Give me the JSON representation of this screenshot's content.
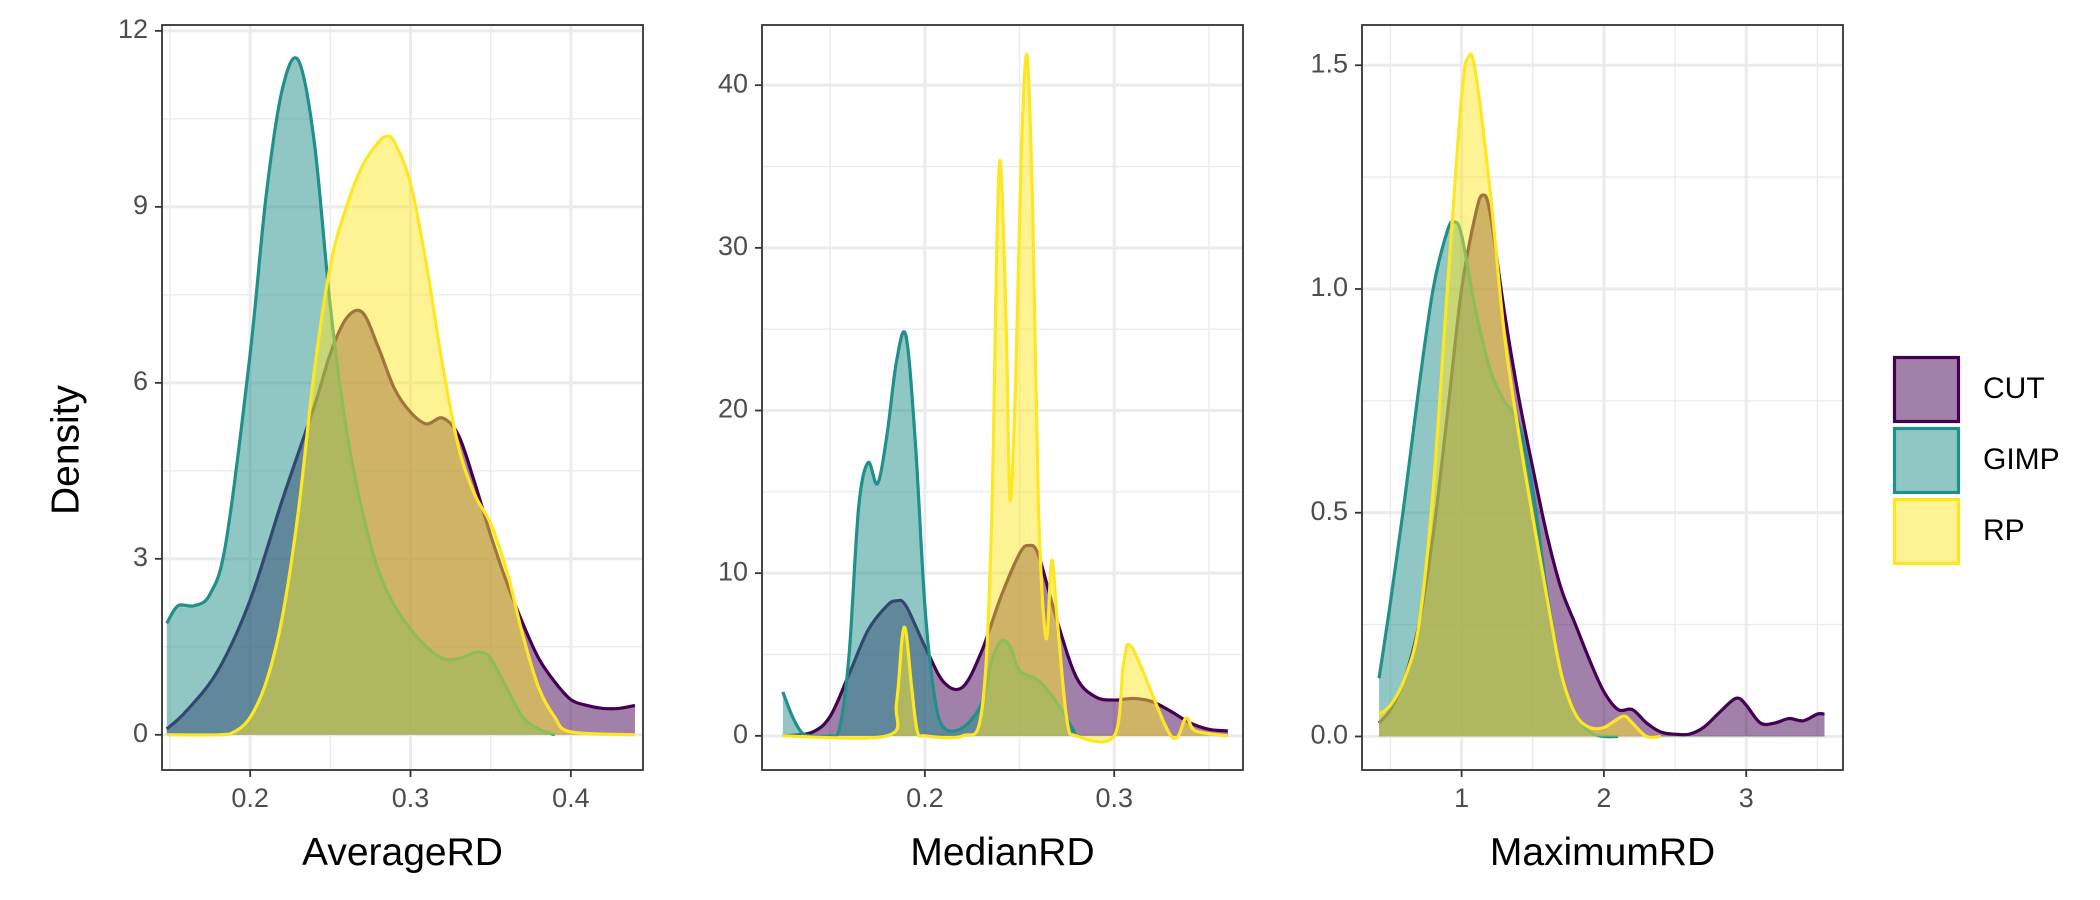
{
  "ylabel": "Density",
  "colors": {
    "CUT": "#440154",
    "GIMP": "#21908C",
    "RP": "#FDE725"
  },
  "legend": {
    "position": "right",
    "entries": [
      "CUT",
      "GIMP",
      "RP"
    ]
  },
  "chart_data": [
    {
      "type": "area",
      "xlabel": "AverageRD",
      "ylabel": "Density",
      "xlim": [
        0.145,
        0.445
      ],
      "ylim": [
        -0.6,
        12.1
      ],
      "xticks": [
        0.2,
        0.3,
        0.4
      ],
      "xtick_labels": [
        "0.2",
        "0.3",
        "0.4"
      ],
      "yticks": [
        0,
        3,
        6,
        9,
        12
      ],
      "ytick_labels": [
        "0",
        "3",
        "6",
        "9",
        "12"
      ],
      "grid": true,
      "series": [
        {
          "name": "CUT",
          "x": [
            0.148,
            0.16,
            0.18,
            0.2,
            0.22,
            0.24,
            0.25,
            0.26,
            0.27,
            0.28,
            0.29,
            0.3,
            0.31,
            0.32,
            0.33,
            0.34,
            0.35,
            0.36,
            0.37,
            0.38,
            0.39,
            0.4,
            0.41,
            0.42,
            0.43,
            0.44
          ],
          "y": [
            0.1,
            0.4,
            1.1,
            2.3,
            4.0,
            5.6,
            6.5,
            7.1,
            7.2,
            6.6,
            5.9,
            5.5,
            5.3,
            5.4,
            5.1,
            4.3,
            3.4,
            2.6,
            1.9,
            1.3,
            0.9,
            0.6,
            0.5,
            0.45,
            0.45,
            0.5
          ]
        },
        {
          "name": "GIMP",
          "x": [
            0.148,
            0.155,
            0.165,
            0.175,
            0.185,
            0.2,
            0.21,
            0.22,
            0.23,
            0.24,
            0.25,
            0.26,
            0.27,
            0.28,
            0.29,
            0.3,
            0.31,
            0.32,
            0.33,
            0.34,
            0.345,
            0.35,
            0.36,
            0.37,
            0.38,
            0.39
          ],
          "y": [
            1.9,
            2.2,
            2.2,
            2.4,
            3.3,
            6.5,
            9.2,
            11.0,
            11.5,
            10.1,
            7.3,
            5.2,
            3.8,
            2.8,
            2.2,
            1.8,
            1.5,
            1.3,
            1.3,
            1.4,
            1.4,
            1.3,
            0.8,
            0.3,
            0.1,
            0.0
          ]
        },
        {
          "name": "RP",
          "x": [
            0.148,
            0.18,
            0.19,
            0.2,
            0.21,
            0.22,
            0.23,
            0.24,
            0.25,
            0.26,
            0.27,
            0.28,
            0.285,
            0.29,
            0.3,
            0.31,
            0.32,
            0.33,
            0.34,
            0.35,
            0.36,
            0.37,
            0.38,
            0.39,
            0.4,
            0.44
          ],
          "y": [
            0.0,
            0.0,
            0.05,
            0.3,
            0.9,
            2.0,
            3.8,
            6.2,
            8.0,
            9.0,
            9.7,
            10.1,
            10.2,
            10.1,
            9.4,
            8.0,
            6.3,
            4.9,
            4.1,
            3.6,
            2.8,
            1.7,
            0.8,
            0.3,
            0.05,
            0.0
          ]
        }
      ]
    },
    {
      "type": "area",
      "xlabel": "MedianRD",
      "ylabel": "Density",
      "xlim": [
        0.114,
        0.368
      ],
      "ylim": [
        -2.1,
        43.7
      ],
      "xticks": [
        0.2,
        0.3
      ],
      "xtick_labels": [
        "0.2",
        "0.3"
      ],
      "yticks": [
        0,
        10,
        20,
        30,
        40
      ],
      "ytick_labels": [
        "0",
        "10",
        "20",
        "30",
        "40"
      ],
      "grid": true,
      "series": [
        {
          "name": "CUT",
          "x": [
            0.125,
            0.14,
            0.15,
            0.16,
            0.17,
            0.18,
            0.185,
            0.19,
            0.2,
            0.21,
            0.22,
            0.23,
            0.24,
            0.25,
            0.255,
            0.26,
            0.27,
            0.28,
            0.29,
            0.3,
            0.31,
            0.32,
            0.33,
            0.34,
            0.35,
            0.36
          ],
          "y": [
            0.0,
            0.2,
            1.2,
            3.8,
            6.5,
            8.0,
            8.3,
            8.0,
            5.5,
            3.3,
            3.0,
            5.2,
            8.5,
            11.2,
            11.7,
            11.1,
            7.0,
            3.6,
            2.4,
            2.2,
            2.3,
            2.1,
            1.5,
            0.8,
            0.4,
            0.3
          ]
        },
        {
          "name": "GIMP",
          "x": [
            0.125,
            0.13,
            0.135,
            0.14,
            0.15,
            0.155,
            0.16,
            0.165,
            0.17,
            0.175,
            0.18,
            0.185,
            0.19,
            0.195,
            0.2,
            0.205,
            0.21,
            0.22,
            0.23,
            0.235,
            0.24,
            0.245,
            0.25,
            0.26,
            0.27,
            0.28
          ],
          "y": [
            2.7,
            1.2,
            0.2,
            0.0,
            0.0,
            0.5,
            5.0,
            14.0,
            16.8,
            15.5,
            18.5,
            23.0,
            24.6,
            18.0,
            8.0,
            2.5,
            0.5,
            0.5,
            2.0,
            4.5,
            5.8,
            5.5,
            4.0,
            3.4,
            2.0,
            0.0
          ]
        },
        {
          "name": "RP",
          "x": [
            0.125,
            0.18,
            0.185,
            0.188,
            0.19,
            0.193,
            0.196,
            0.2,
            0.22,
            0.23,
            0.235,
            0.238,
            0.24,
            0.243,
            0.245,
            0.248,
            0.251,
            0.254,
            0.257,
            0.26,
            0.264,
            0.267,
            0.27,
            0.275,
            0.28,
            0.3,
            0.305,
            0.31,
            0.33,
            0.338,
            0.343,
            0.36
          ],
          "y": [
            0.0,
            0.0,
            2.0,
            6.0,
            6.4,
            3.0,
            0.3,
            0.0,
            0.0,
            1.5,
            12.0,
            30.0,
            35.2,
            25.0,
            14.5,
            22.0,
            36.0,
            41.8,
            32.0,
            14.0,
            6.0,
            10.8,
            7.0,
            1.0,
            0.0,
            0.0,
            4.5,
            5.3,
            0.0,
            1.1,
            0.3,
            0.0
          ]
        }
      ]
    },
    {
      "type": "area",
      "xlabel": "MaximumRD",
      "ylabel": "Density",
      "xlim": [
        0.3,
        3.68
      ],
      "ylim": [
        -0.075,
        1.59
      ],
      "xticks": [
        1,
        2,
        3
      ],
      "xtick_labels": [
        "1",
        "2",
        "3"
      ],
      "yticks": [
        0.0,
        0.5,
        1.0,
        1.5
      ],
      "ytick_labels": [
        "0.0",
        "0.5",
        "1.0",
        "1.5"
      ],
      "grid": true,
      "series": [
        {
          "name": "CUT",
          "x": [
            0.42,
            0.5,
            0.6,
            0.7,
            0.8,
            0.9,
            1.0,
            1.1,
            1.15,
            1.2,
            1.3,
            1.4,
            1.5,
            1.6,
            1.7,
            1.8,
            1.9,
            2.0,
            2.1,
            2.2,
            2.3,
            2.4,
            2.5,
            2.6,
            2.7,
            2.8,
            2.9,
            2.95,
            3.0,
            3.1,
            3.2,
            3.3,
            3.4,
            3.5,
            3.55
          ],
          "y": [
            0.03,
            0.06,
            0.13,
            0.25,
            0.45,
            0.72,
            1.0,
            1.17,
            1.21,
            1.17,
            0.95,
            0.76,
            0.6,
            0.45,
            0.33,
            0.25,
            0.17,
            0.1,
            0.06,
            0.06,
            0.03,
            0.01,
            0.005,
            0.005,
            0.02,
            0.05,
            0.08,
            0.085,
            0.07,
            0.03,
            0.03,
            0.04,
            0.035,
            0.05,
            0.05
          ]
        },
        {
          "name": "GIMP",
          "x": [
            0.42,
            0.5,
            0.6,
            0.7,
            0.8,
            0.9,
            0.95,
            1.0,
            1.1,
            1.2,
            1.3,
            1.4,
            1.5,
            1.6,
            1.7,
            1.8,
            1.9,
            2.0,
            2.1
          ],
          "y": [
            0.13,
            0.3,
            0.53,
            0.78,
            1.0,
            1.13,
            1.15,
            1.12,
            0.95,
            0.82,
            0.75,
            0.7,
            0.55,
            0.32,
            0.14,
            0.05,
            0.01,
            0.0,
            0.0
          ]
        },
        {
          "name": "RP",
          "x": [
            0.42,
            0.5,
            0.6,
            0.7,
            0.8,
            0.9,
            1.0,
            1.05,
            1.1,
            1.2,
            1.3,
            1.4,
            1.5,
            1.6,
            1.7,
            1.8,
            1.9,
            2.0,
            2.1,
            2.15,
            2.2,
            2.3,
            2.4
          ],
          "y": [
            0.05,
            0.07,
            0.13,
            0.25,
            0.55,
            1.0,
            1.43,
            1.52,
            1.48,
            1.22,
            0.9,
            0.68,
            0.49,
            0.31,
            0.14,
            0.05,
            0.02,
            0.02,
            0.04,
            0.045,
            0.03,
            0.0,
            0.0
          ]
        }
      ]
    }
  ]
}
